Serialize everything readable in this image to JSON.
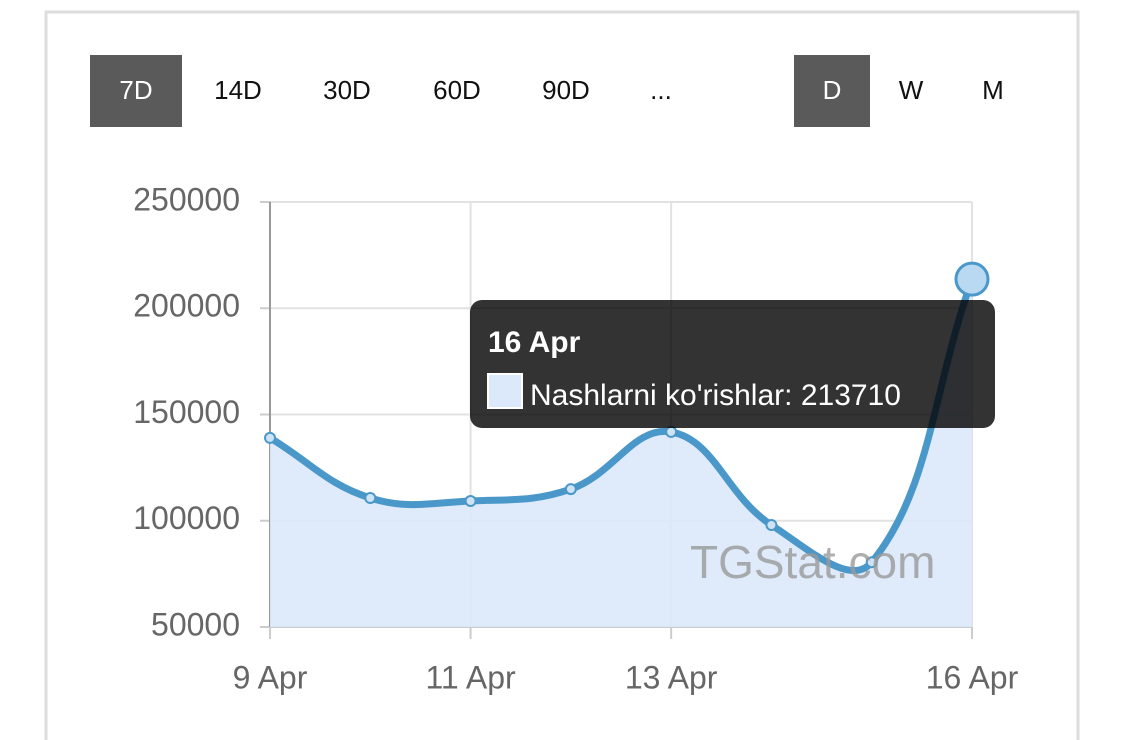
{
  "buttons": {
    "ranges": [
      "7D",
      "14D",
      "30D",
      "60D",
      "90D",
      "..."
    ],
    "active_range": 0,
    "intervals": [
      "D",
      "W",
      "M"
    ],
    "active_interval": 0
  },
  "chart_data": {
    "type": "line",
    "categories": [
      "9 Apr",
      null,
      "11 Apr",
      null,
      "13 Apr",
      null,
      null,
      "16 Apr"
    ],
    "series": [
      {
        "color": "#4a98c9",
        "fill": "#dce9fb",
        "values": [
          139000,
          110700,
          109300,
          114900,
          141800,
          98000,
          80500,
          213710
        ]
      }
    ],
    "ylim": [
      50000,
      250000
    ],
    "yticks": [
      50000,
      100000,
      150000,
      200000,
      250000
    ],
    "grid": true,
    "watermark": "TGStat.com",
    "tooltip": {
      "title": "16 Apr",
      "label": "Nashlarni ko'rishlar: 213710",
      "hover_index": 7
    }
  }
}
